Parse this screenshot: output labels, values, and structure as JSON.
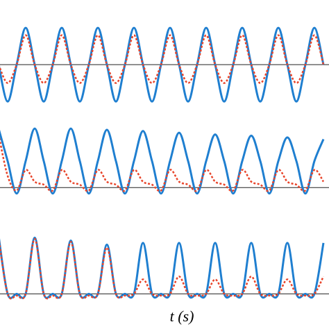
{
  "chart_data": [
    {
      "type": "line",
      "xlim": [
        0,
        474
      ],
      "ylim": [
        -1.26,
        1.19
      ],
      "zero_line": true,
      "x": [
        -2,
        11,
        24,
        37,
        50,
        63,
        76,
        89,
        102,
        115,
        128,
        141,
        154,
        167,
        180,
        193,
        206,
        219,
        232,
        245,
        258,
        271,
        284,
        297,
        310,
        323,
        336,
        349,
        362,
        375,
        388,
        401,
        414,
        427,
        440,
        453,
        466
      ],
      "series": [
        {
          "color": "#1f7fd0",
          "style": "solid",
          "values": [
            0,
            -1,
            0,
            1,
            0,
            -1,
            0,
            1,
            0,
            -1,
            0,
            1,
            0,
            -1,
            0,
            1,
            0,
            -1,
            0,
            1,
            0,
            -1,
            0,
            1,
            0,
            -1,
            0,
            1,
            0,
            -1,
            0,
            1,
            0,
            -1,
            0,
            1,
            0
          ]
        },
        {
          "color": "#e8442a",
          "style": "dotted",
          "values": [
            0,
            -0.5,
            0,
            0.8,
            0,
            -0.5,
            0,
            0.8,
            0,
            -0.5,
            0,
            0.8,
            0,
            -0.5,
            0,
            0.8,
            0,
            -0.5,
            0,
            0.8,
            0,
            -0.5,
            0,
            0.8,
            0,
            -0.5,
            0,
            0.8,
            0,
            -0.5,
            0,
            0.8,
            0,
            -0.5,
            0,
            0.8,
            0
          ]
        }
      ]
    },
    {
      "type": "line",
      "xlim": [
        0,
        474
      ],
      "ylim": [
        -0.35,
        1.18
      ],
      "zero_line": true,
      "x": [
        -2,
        11,
        24,
        37,
        50,
        63,
        76,
        89,
        102,
        115,
        128,
        141,
        154,
        167,
        180,
        193,
        206,
        219,
        232,
        245,
        258,
        271,
        284,
        297,
        310,
        323,
        336,
        349,
        362,
        375,
        388,
        401,
        414,
        427,
        440,
        453,
        466
      ],
      "series": [
        {
          "color": "#1f7fd0",
          "style": "solid",
          "values": [
            1.0,
            0.45,
            -0.1,
            0.45,
            1.0,
            0.45,
            -0.1,
            0.45,
            1.0,
            0.45,
            -0.1,
            0.45,
            0.98,
            0.45,
            -0.1,
            0.45,
            0.96,
            0.45,
            -0.1,
            0.45,
            0.93,
            0.45,
            -0.1,
            0.45,
            0.9,
            0.45,
            -0.1,
            0.45,
            0.88,
            0.45,
            -0.1,
            0.45,
            0.85,
            0.45,
            -0.1,
            0.45,
            0.82
          ]
        },
        {
          "color": "#e8442a",
          "style": "dotted",
          "values": [
            0.9,
            0.2,
            -0.05,
            0.3,
            0.1,
            0.05,
            -0.05,
            0.3,
            0.1,
            0.05,
            -0.05,
            0.3,
            0.1,
            0.05,
            -0.05,
            0.3,
            0.1,
            0.05,
            -0.05,
            0.3,
            0.1,
            0.05,
            -0.05,
            0.3,
            0.1,
            0.05,
            -0.05,
            0.3,
            0.1,
            0.05,
            -0.05,
            0.3,
            0.1,
            0.05,
            -0.05,
            0.3,
            0.1
          ]
        }
      ]
    },
    {
      "type": "line",
      "xlim": [
        0,
        474
      ],
      "ylim": [
        -0.2,
        1.18
      ],
      "zero_line": true,
      "xlabel": "t (s)",
      "x": [
        -2,
        11,
        24,
        37,
        50,
        63,
        76,
        89,
        102,
        115,
        128,
        141,
        154,
        167,
        180,
        193,
        206,
        219,
        232,
        245,
        258,
        271,
        284,
        297,
        310,
        323,
        336,
        349,
        362,
        375,
        388,
        401,
        414,
        427,
        440,
        453,
        466
      ],
      "series": [
        {
          "color": "#1f7fd0",
          "style": "solid",
          "values": [
            1.0,
            0,
            0,
            0,
            0.97,
            0,
            0,
            0,
            0.92,
            0,
            0,
            0,
            0.85,
            0,
            0,
            0,
            0.88,
            0,
            0,
            0,
            0.88,
            0,
            0,
            0,
            0.88,
            0,
            0,
            0,
            0.88,
            0,
            0,
            0,
            0.88,
            0,
            0,
            0,
            0.88
          ]
        },
        {
          "color": "#e8442a",
          "style": "dotted",
          "values": [
            0.97,
            0,
            -0.03,
            0,
            0.95,
            0,
            -0.03,
            0,
            0.9,
            0,
            -0.03,
            0,
            0.8,
            0,
            -0.03,
            0,
            0.25,
            0,
            -0.03,
            0,
            0.3,
            0,
            -0.03,
            0,
            0.25,
            0,
            -0.03,
            0,
            0.3,
            0,
            -0.03,
            0,
            0.25,
            0,
            -0.03,
            0,
            0.3
          ]
        }
      ]
    }
  ]
}
